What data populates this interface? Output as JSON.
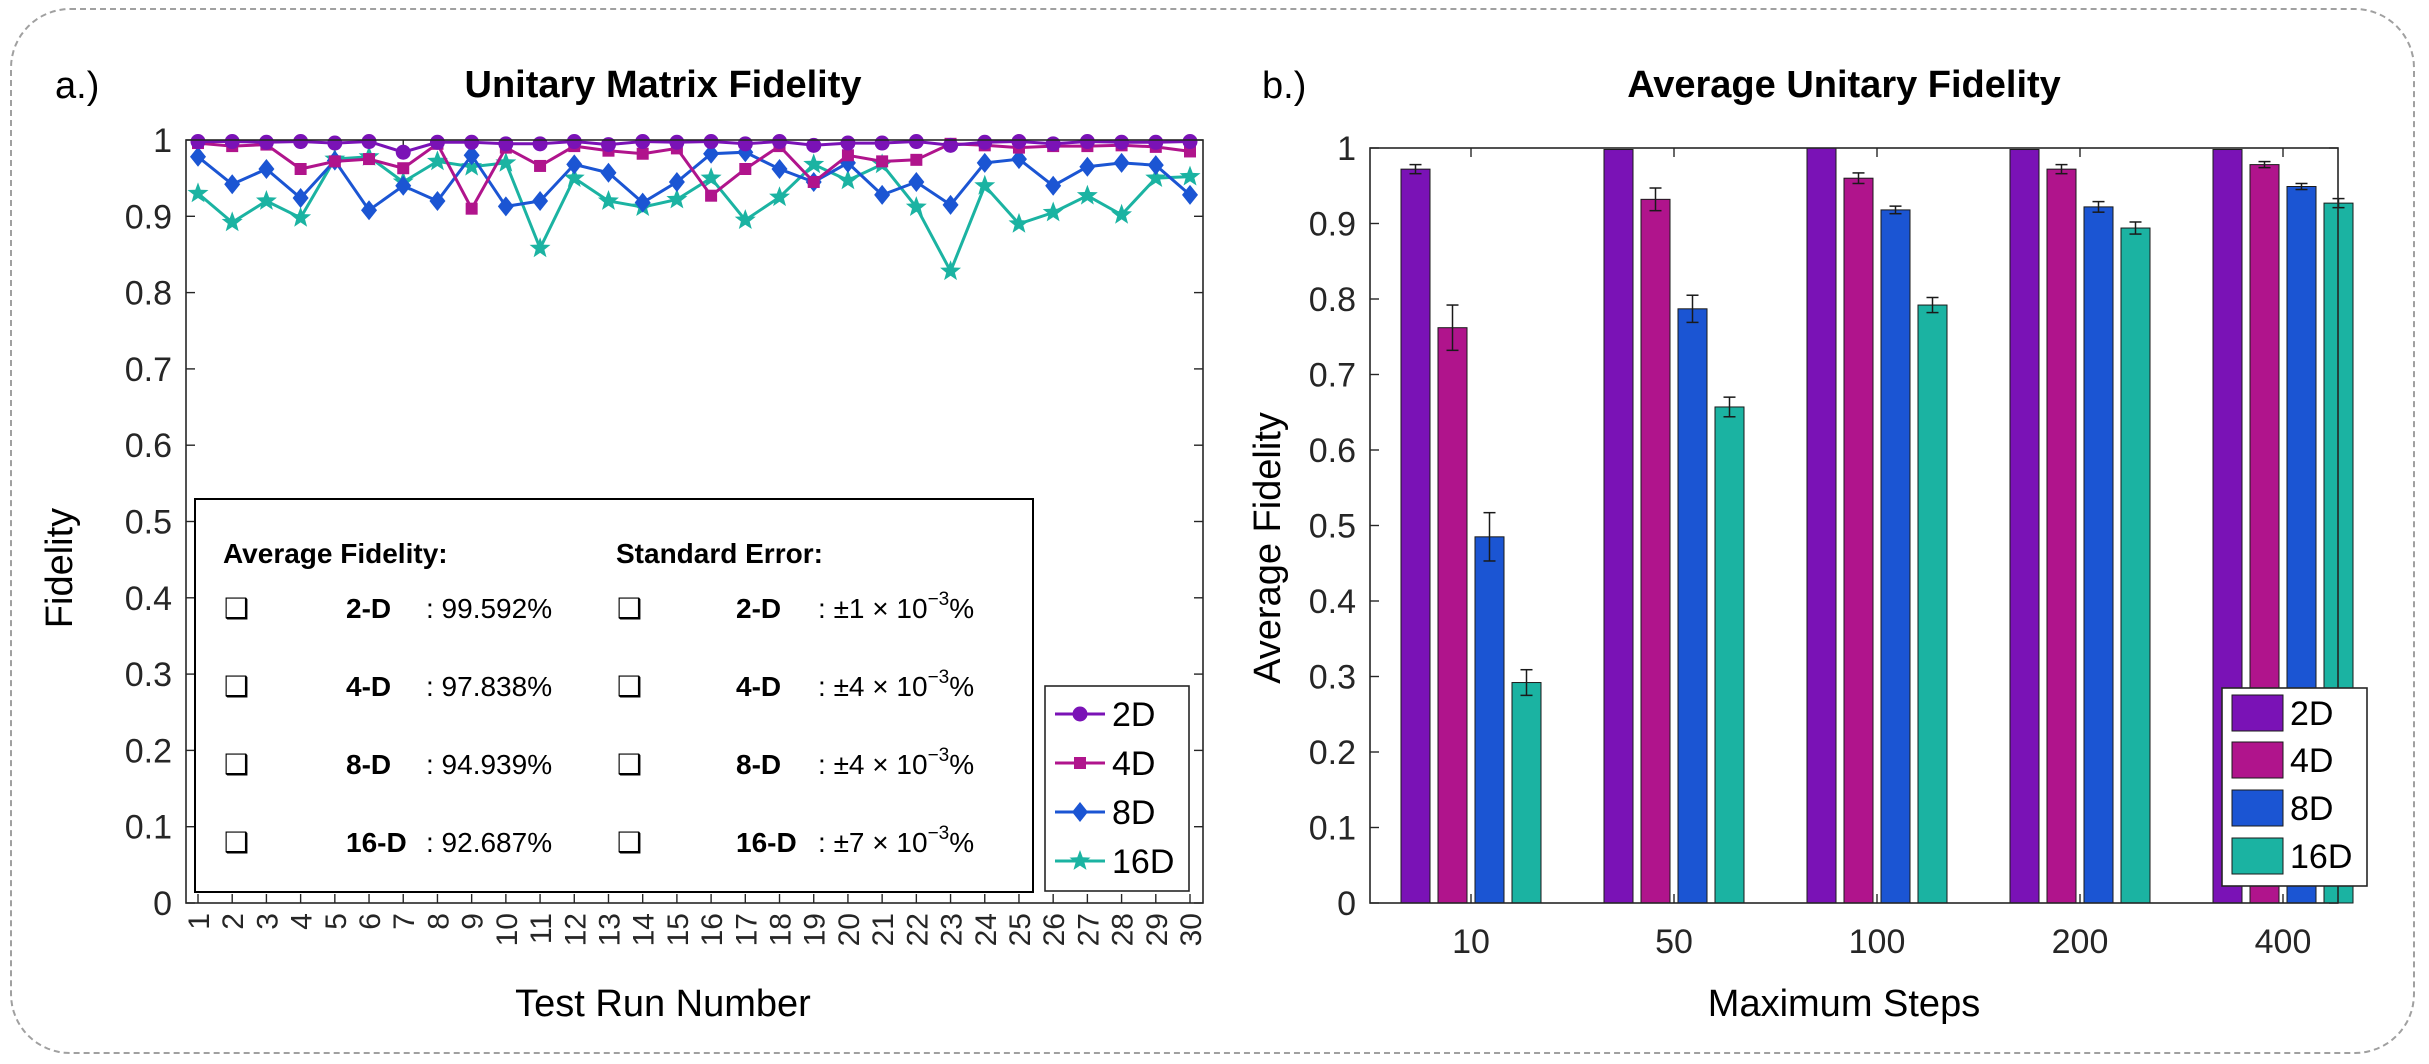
{
  "colors": {
    "2D": "#7a12b6",
    "4D": "#b0148c",
    "8D": "#1b55d3",
    "16D": "#1bb3a2"
  },
  "chart_data": [
    {
      "type": "line",
      "panel_label": "a.)",
      "title": "Unitary Matrix Fidelity",
      "xlabel": "Test Run Number",
      "ylabel": "Fidelity",
      "x": [
        1,
        2,
        3,
        4,
        5,
        6,
        7,
        8,
        9,
        10,
        11,
        12,
        13,
        14,
        15,
        16,
        17,
        18,
        19,
        20,
        21,
        22,
        23,
        24,
        25,
        26,
        27,
        28,
        29,
        30
      ],
      "x_tick_labels": [
        "1",
        "2",
        "3",
        "4",
        "5",
        "6",
        "7",
        "8",
        "9",
        "10",
        "11",
        "12",
        "13",
        "14",
        "15",
        "16",
        "17",
        "18",
        "19",
        "20",
        "21",
        "22",
        "23",
        "24",
        "25",
        "26",
        "27",
        "28",
        "29",
        "30"
      ],
      "ylim": [
        0,
        1
      ],
      "y_ticks": [
        0,
        0.1,
        0.2,
        0.3,
        0.4,
        0.5,
        0.6,
        0.7,
        0.8,
        0.9,
        1
      ],
      "y_tick_labels": [
        "0",
        "0.1",
        "0.2",
        "0.3",
        "0.4",
        "0.5",
        "0.6",
        "0.7",
        "0.8",
        "0.9",
        "1"
      ],
      "legend_position": "bottom-right",
      "series": [
        {
          "name": "2D",
          "key": "2D",
          "marker": "circle",
          "values": [
            0.998,
            0.998,
            0.997,
            0.998,
            0.996,
            0.998,
            0.984,
            0.997,
            0.997,
            0.995,
            0.995,
            0.998,
            0.994,
            0.998,
            0.997,
            0.998,
            0.995,
            0.998,
            0.993,
            0.996,
            0.996,
            0.998,
            0.993,
            0.997,
            0.998,
            0.995,
            0.998,
            0.997,
            0.997,
            0.998
          ]
        },
        {
          "name": "4D",
          "key": "4D",
          "marker": "square",
          "values": [
            0.996,
            0.992,
            0.994,
            0.962,
            0.972,
            0.975,
            0.963,
            0.995,
            0.91,
            0.99,
            0.966,
            0.992,
            0.986,
            0.982,
            0.989,
            0.927,
            0.962,
            0.992,
            0.945,
            0.98,
            0.972,
            0.974,
            0.995,
            0.993,
            0.99,
            0.992,
            0.992,
            0.993,
            0.991,
            0.985
          ]
        },
        {
          "name": "8D",
          "key": "8D",
          "marker": "diamond",
          "values": [
            0.978,
            0.942,
            0.962,
            0.924,
            0.973,
            0.908,
            0.94,
            0.92,
            0.98,
            0.913,
            0.92,
            0.968,
            0.957,
            0.918,
            0.945,
            0.982,
            0.984,
            0.962,
            0.945,
            0.97,
            0.928,
            0.945,
            0.915,
            0.97,
            0.975,
            0.94,
            0.965,
            0.97,
            0.967,
            0.928
          ]
        },
        {
          "name": "16D",
          "key": "16D",
          "marker": "star",
          "values": [
            0.93,
            0.892,
            0.92,
            0.898,
            0.975,
            0.978,
            0.945,
            0.972,
            0.965,
            0.97,
            0.858,
            0.95,
            0.92,
            0.912,
            0.922,
            0.95,
            0.895,
            0.925,
            0.968,
            0.947,
            0.968,
            0.912,
            0.828,
            0.94,
            0.89,
            0.905,
            0.927,
            0.902,
            0.95,
            0.952
          ]
        }
      ],
      "annotation_box": {
        "heading_avg": "Average Fidelity:",
        "heading_err": "Standard Error:",
        "checkbox_glyph": "❑",
        "rows": [
          {
            "dim": "2-D",
            "avg": ": 99.592%",
            "err_prefix": ":",
            "err_coef": "1",
            "err_sup": "−3"
          },
          {
            "dim": "4-D",
            "avg": ": 97.838%",
            "err_prefix": ":",
            "err_coef": "4",
            "err_sup": "−3"
          },
          {
            "dim": "8-D",
            "avg": ": 94.939%",
            "err_prefix": ":",
            "err_coef": "4",
            "err_sup": "−3"
          },
          {
            "dim": "16-D",
            "avg": ": 92.687%",
            "err_prefix": ":",
            "err_coef": "7",
            "err_sup": "−3"
          }
        ],
        "pm_symbol": "±",
        "times_symbol": "× 10",
        "percent_symbol": "%"
      }
    },
    {
      "type": "bar",
      "panel_label": "b.)",
      "title": "Average Unitary Fidelity",
      "xlabel": "Maximum Steps",
      "ylabel": "Average Fidelity",
      "categories": [
        "10",
        "50",
        "100",
        "200",
        "400"
      ],
      "ylim": [
        0,
        1
      ],
      "y_ticks": [
        0,
        0.1,
        0.2,
        0.3,
        0.4,
        0.5,
        0.6,
        0.7,
        0.8,
        0.9,
        1
      ],
      "y_tick_labels": [
        "0",
        "0.1",
        "0.2",
        "0.3",
        "0.4",
        "0.5",
        "0.6",
        "0.7",
        "0.8",
        "0.9",
        "1"
      ],
      "legend_position": "bottom-right",
      "series": [
        {
          "name": "2D",
          "key": "2D",
          "values": [
            0.972,
            0.998,
            1.0,
            0.998,
            0.998
          ],
          "errors": [
            0.006,
            0.0,
            0.0,
            0.0,
            0.0
          ]
        },
        {
          "name": "4D",
          "key": "4D",
          "values": [
            0.762,
            0.932,
            0.96,
            0.972,
            0.978
          ],
          "errors": [
            0.03,
            0.015,
            0.007,
            0.006,
            0.004
          ]
        },
        {
          "name": "8D",
          "key": "8D",
          "values": [
            0.485,
            0.787,
            0.918,
            0.922,
            0.949
          ],
          "errors": [
            0.032,
            0.018,
            0.005,
            0.007,
            0.004
          ]
        },
        {
          "name": "16D",
          "key": "16D",
          "values": [
            0.292,
            0.657,
            0.792,
            0.894,
            0.927
          ],
          "errors": [
            0.017,
            0.013,
            0.01,
            0.008,
            0.006
          ]
        }
      ]
    }
  ]
}
